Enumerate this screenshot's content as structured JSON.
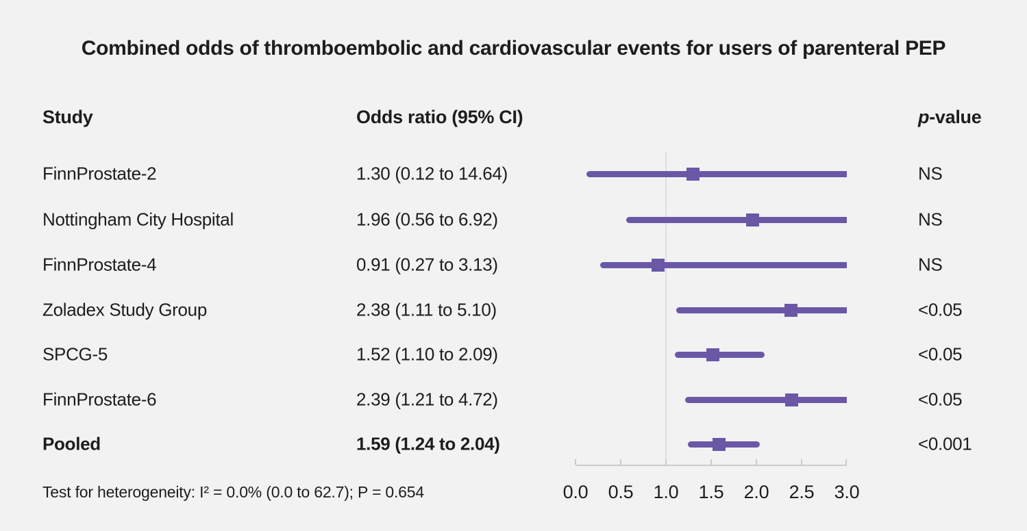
{
  "chart_data": {
    "type": "forest",
    "title": "Combined odds of thromboembolic and cardiovascular events for users of parenteral PEP",
    "columns": {
      "study": "Study",
      "or": "Odds ratio (95% CI)",
      "p_italic": "p",
      "p_rest": "-value"
    },
    "rows": [
      {
        "study": "FinnProstate-2",
        "or_label": "1.30 (0.12 to 14.64)",
        "or": 1.3,
        "lo": 0.12,
        "hi": 14.64,
        "p": "NS",
        "bold": false
      },
      {
        "study": "Nottingham City Hospital",
        "or_label": "1.96 (0.56 to 6.92)",
        "or": 1.96,
        "lo": 0.56,
        "hi": 6.92,
        "p": "NS",
        "bold": false
      },
      {
        "study": "FinnProstate-4",
        "or_label": "0.91 (0.27 to 3.13)",
        "or": 0.91,
        "lo": 0.27,
        "hi": 3.13,
        "p": "NS",
        "bold": false
      },
      {
        "study": "Zoladex Study Group",
        "or_label": "2.38 (1.11 to 5.10)",
        "or": 2.38,
        "lo": 1.11,
        "hi": 5.1,
        "p": "<0.05",
        "bold": false
      },
      {
        "study": "SPCG-5",
        "or_label": "1.52 (1.10 to 2.09)",
        "or": 1.52,
        "lo": 1.1,
        "hi": 2.09,
        "p": "<0.05",
        "bold": false
      },
      {
        "study": "FinnProstate-6",
        "or_label": "2.39 (1.21 to 4.72)",
        "or": 2.39,
        "lo": 1.21,
        "hi": 4.72,
        "p": "<0.05",
        "bold": false
      },
      {
        "study": "Pooled",
        "or_label": "1.59 (1.24 to 2.04)",
        "or": 1.59,
        "lo": 1.24,
        "hi": 2.04,
        "p": "<0.001",
        "bold": true
      }
    ],
    "x_axis": {
      "ticks": [
        0.0,
        0.5,
        1.0,
        1.5,
        2.0,
        2.5,
        3.0
      ],
      "range": [
        0.0,
        3.0
      ],
      "reference_line": 1.0,
      "grid": false
    },
    "footnote": "Test for heterogeneity: I² = 0.0% (0.0 to 62.7); P = 0.654",
    "colors": {
      "marker": "#6a58a7",
      "background": "#f2f2f3",
      "text": "#1d1d1d",
      "reference_line": "#dcdfe3",
      "axis": "#c9cbce"
    }
  }
}
